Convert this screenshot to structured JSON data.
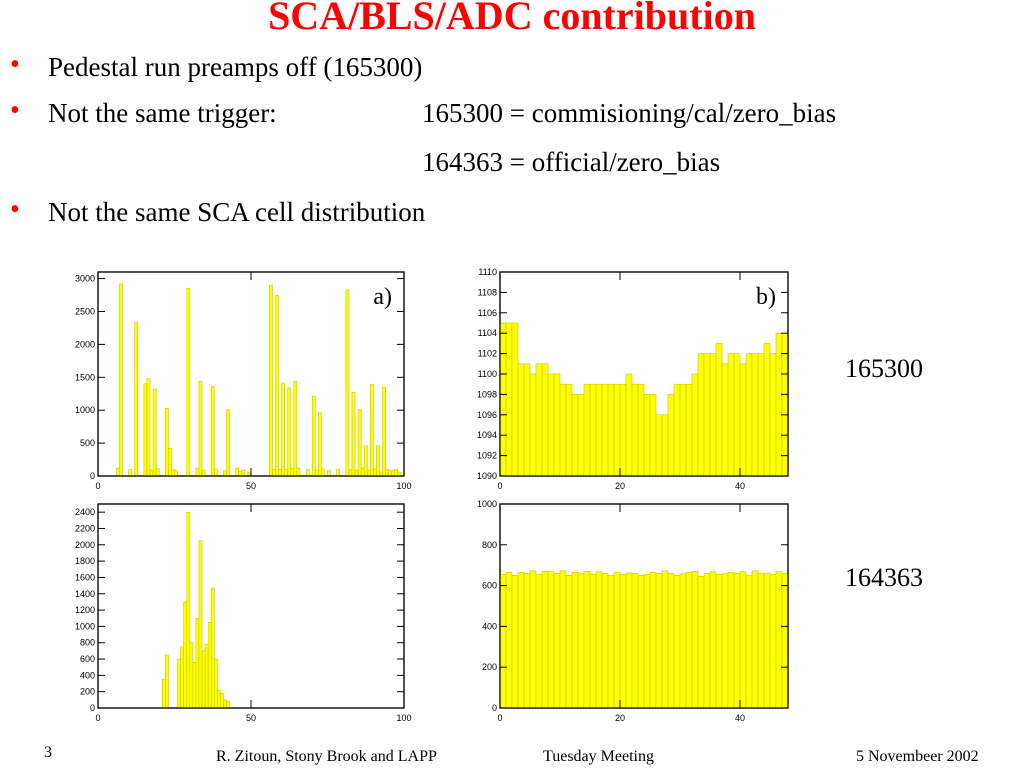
{
  "slide": {
    "title": "SCA/BLS/ADC contribution",
    "bullets": [
      {
        "text": "Pedestal run preamps off (165300)"
      },
      {
        "text": "Not the same trigger:",
        "detail": "165300 = commisioning/cal/zero_bias"
      },
      {
        "detail2": "164363 = official/zero_bias"
      },
      {
        "text": "Not the same SCA cell distribution"
      }
    ],
    "run_labels": [
      "165300",
      "164363"
    ],
    "footer": {
      "page": "3",
      "author": "R. Zitoun, Stony Brook and LAPP",
      "meeting": "Tuesday Meeting",
      "date": "5 Novembeer 2002"
    }
  },
  "colors": {
    "title": "#ff0000",
    "bullet": "#ff0000",
    "fill": "#ffff00",
    "edge": "#c8c800"
  },
  "chart_data": [
    {
      "type": "bar",
      "panel": "a)",
      "xlim": [
        0,
        100
      ],
      "ylim": [
        0,
        3100
      ],
      "xticks": [
        0,
        50,
        100
      ],
      "yticks": [
        0,
        500,
        1000,
        1500,
        2000,
        2500,
        3000
      ],
      "x": [
        6,
        7,
        10,
        12,
        15,
        16,
        17,
        18,
        19,
        22,
        23,
        24,
        25,
        29,
        32,
        33,
        34,
        37,
        38,
        41,
        42,
        45,
        46,
        47,
        49,
        56,
        57,
        58,
        59,
        60,
        61,
        62,
        63,
        64,
        65,
        68,
        70,
        71,
        72,
        73,
        75,
        78,
        81,
        82,
        83,
        84,
        85,
        86,
        87,
        88,
        89,
        90,
        91,
        92,
        93,
        94,
        95,
        96,
        97,
        98
      ],
      "values": [
        120,
        2920,
        100,
        2330,
        1400,
        1480,
        90,
        1320,
        110,
        1030,
        420,
        100,
        80,
        2850,
        120,
        1440,
        90,
        1360,
        110,
        80,
        1010,
        120,
        70,
        90,
        60,
        2900,
        100,
        2740,
        100,
        1410,
        100,
        1340,
        120,
        1440,
        120,
        100,
        1210,
        90,
        960,
        110,
        80,
        100,
        2830,
        100,
        1270,
        90,
        1010,
        120,
        460,
        90,
        1390,
        110,
        460,
        60,
        1350,
        100,
        80,
        90,
        100,
        60
      ]
    },
    {
      "type": "bar",
      "panel": "b)",
      "xlim": [
        0,
        48
      ],
      "ylim": [
        1090,
        1110
      ],
      "xticks": [
        0,
        20,
        40
      ],
      "yticks": [
        1090,
        1092,
        1094,
        1096,
        1098,
        1100,
        1102,
        1104,
        1106,
        1108,
        1110
      ],
      "values": [
        1105,
        1105,
        1105,
        1101,
        1101,
        1100,
        1101,
        1101,
        1100,
        1100,
        1099,
        1099,
        1098,
        1098,
        1099,
        1099,
        1099,
        1099,
        1099,
        1099,
        1099,
        1100,
        1099,
        1099,
        1098,
        1098,
        1096,
        1096,
        1098,
        1099,
        1099,
        1099,
        1100,
        1102,
        1102,
        1102,
        1103,
        1101,
        1102,
        1102,
        1101,
        1102,
        1102,
        1102,
        1103,
        1102,
        1104,
        1104
      ]
    },
    {
      "type": "bar",
      "panel": "",
      "xlim": [
        0,
        100
      ],
      "ylim": [
        0,
        2500
      ],
      "xticks": [
        0,
        50,
        100
      ],
      "yticks": [
        0,
        200,
        400,
        600,
        800,
        1000,
        1200,
        1400,
        1600,
        1800,
        2000,
        2200,
        2400
      ],
      "x": [
        21,
        22,
        26,
        27,
        28,
        29,
        30,
        31,
        32,
        33,
        34,
        35,
        36,
        37,
        38,
        39,
        40,
        41,
        42,
        44,
        45,
        46,
        47,
        48,
        49,
        50,
        51,
        52,
        53,
        54,
        55,
        56,
        57,
        58,
        59,
        60,
        61,
        62,
        63,
        64,
        65,
        66,
        67,
        68,
        69,
        70,
        71,
        72,
        73,
        74,
        75,
        76,
        77,
        78,
        79,
        80,
        81,
        82,
        83,
        84,
        85,
        86,
        87,
        88,
        89,
        90,
        91,
        92,
        93
      ],
      "values": [
        350,
        650,
        600,
        750,
        1300,
        2400,
        800,
        560,
        1100,
        2050,
        700,
        780,
        1050,
        1470,
        600,
        220,
        180,
        100,
        80,
        0,
        0,
        0,
        0,
        0,
        0,
        0,
        0,
        0,
        0,
        0,
        0,
        0,
        0,
        0,
        0,
        0,
        0,
        0,
        0,
        0,
        0,
        0,
        0,
        0,
        0,
        0,
        0,
        0,
        0,
        0,
        0,
        0,
        0,
        0,
        0,
        0,
        0,
        0,
        0,
        0,
        0,
        0,
        0,
        0,
        0,
        0,
        0,
        0,
        0
      ]
    },
    {
      "type": "bar",
      "panel": "",
      "xlim": [
        0,
        48
      ],
      "ylim": [
        0,
        1000
      ],
      "xticks": [
        0,
        20,
        40
      ],
      "yticks": [
        0,
        200,
        400,
        600,
        800,
        1000
      ],
      "values": [
        655,
        665,
        650,
        665,
        660,
        672,
        655,
        670,
        668,
        660,
        672,
        650,
        665,
        660,
        670,
        655,
        668,
        660,
        650,
        665,
        655,
        662,
        660,
        650,
        655,
        665,
        660,
        672,
        660,
        650,
        658,
        665,
        670,
        645,
        660,
        668,
        655,
        658,
        665,
        660,
        668,
        650,
        672,
        660,
        662,
        655,
        668,
        660
      ]
    }
  ]
}
